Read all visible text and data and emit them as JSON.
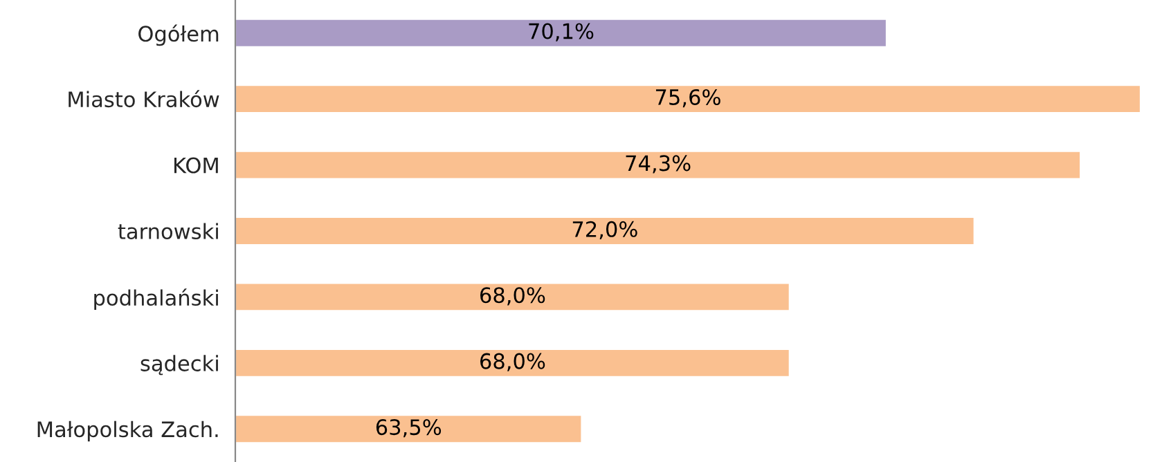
{
  "chart_data": {
    "type": "bar",
    "orientation": "horizontal",
    "categories": [
      "Ogółem",
      "Miasto Kraków",
      "KOM",
      "tarnowski",
      "podhalański",
      "sądecki",
      "Małopolska Zach."
    ],
    "values": [
      70.1,
      75.6,
      74.3,
      72.0,
      68.0,
      68.0,
      63.5
    ],
    "colors": [
      "#a99bc5",
      "#fac090",
      "#fac090",
      "#fac090",
      "#fac090",
      "#fac090",
      "#fac090"
    ],
    "value_labels": [
      "70,1%",
      "75,6%",
      "74,3%",
      "72,0%",
      "68,0%",
      "68,0%",
      "63,5%"
    ],
    "xlim": [
      56,
      75.6
    ],
    "tick_labels": "y",
    "grid": false,
    "legend": false
  }
}
